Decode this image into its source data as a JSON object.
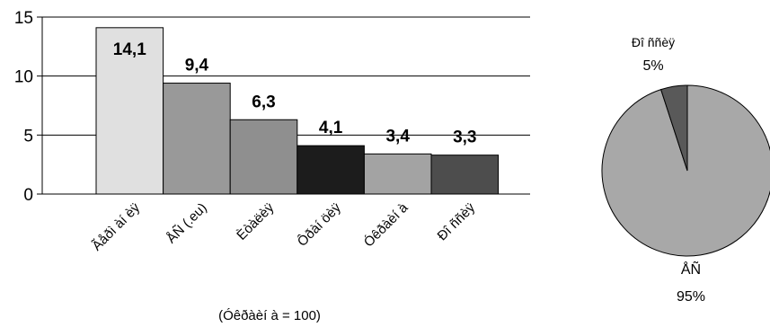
{
  "chart_data": [
    {
      "type": "bar",
      "categories": [
        "Ãåðì àí èÿ",
        "ÅÑ (.eu)",
        "Èòàëèÿ",
        "Ôðàí öèÿ",
        "Óêðàèí à",
        "Ðî ññèÿ"
      ],
      "values": [
        14.1,
        9.4,
        6.3,
        4.1,
        3.4,
        3.3
      ],
      "value_labels": [
        "14,1",
        "9,4",
        "6,3",
        "4,1",
        "3,4",
        "3,3"
      ],
      "bar_colors": [
        "#e0e0e0",
        "#999999",
        "#8f8f8f",
        "#1c1c1c",
        "#a3a3a3",
        "#4d4d4d"
      ],
      "ylim": [
        0,
        15
      ],
      "yticks": [
        0,
        5,
        10,
        15
      ],
      "ytick_labels": [
        "0",
        "5",
        "10",
        "15"
      ],
      "grid": true,
      "note": "(Óêðàèí à = 100)"
    },
    {
      "type": "pie",
      "slices": [
        {
          "label": "ÅÑ",
          "value": 95,
          "value_label": "95%",
          "color": "#a8a8a8"
        },
        {
          "label": "Ðî ññèÿ",
          "value": 5,
          "value_label": "5%",
          "color": "#595959"
        }
      ]
    }
  ]
}
